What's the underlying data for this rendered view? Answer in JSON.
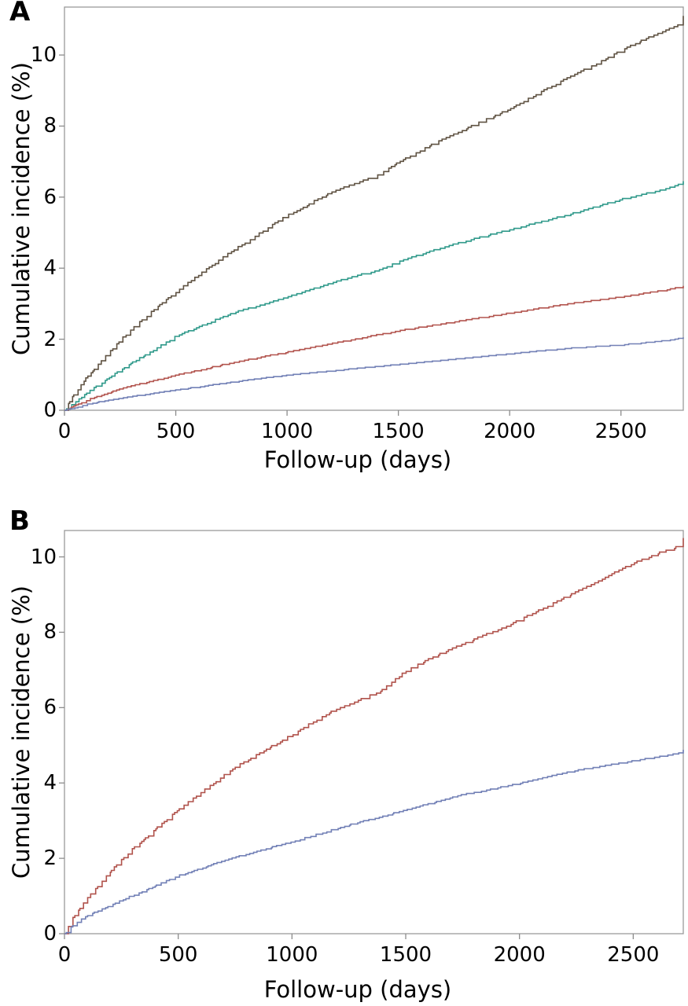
{
  "figure": {
    "background": "#ffffff",
    "frame_color": "#9a9a9a",
    "tick_color": "#8c8c8c",
    "text_color": "#000000"
  },
  "chart_data": [
    {
      "type": "line",
      "style": "kaplan-meier-step",
      "panel_label": "A",
      "title": "",
      "xlabel": "Follow-up (days)",
      "ylabel": "Cumulative incidence (%)",
      "x_ticks": [
        0,
        500,
        1000,
        1500,
        2000,
        2500
      ],
      "y_ticks": [
        0,
        2,
        4,
        6,
        8,
        10
      ],
      "xlim": [
        0,
        2780
      ],
      "ylim": [
        0,
        11.35
      ],
      "grid": false,
      "legend": "none",
      "series": [
        {
          "name": "olive-curve",
          "color": "#5f5242",
          "jump": 0.048,
          "seed": 3,
          "points": [
            [
              0,
              0
            ],
            [
              30,
              0.35
            ],
            [
              100,
              0.95
            ],
            [
              250,
              2.0
            ],
            [
              400,
              2.85
            ],
            [
              500,
              3.35
            ],
            [
              650,
              4.05
            ],
            [
              750,
              4.5
            ],
            [
              900,
              5.1
            ],
            [
              1000,
              5.5
            ],
            [
              1150,
              6.0
            ],
            [
              1250,
              6.3
            ],
            [
              1400,
              6.6
            ],
            [
              1500,
              7.0
            ],
            [
              1650,
              7.5
            ],
            [
              1750,
              7.8
            ],
            [
              2000,
              8.5
            ],
            [
              2250,
              9.35
            ],
            [
              2400,
              9.8
            ],
            [
              2500,
              10.15
            ],
            [
              2650,
              10.6
            ],
            [
              2760,
              10.9
            ],
            [
              2780,
              11.1
            ]
          ]
        },
        {
          "name": "teal-curve",
          "color": "#2f998a",
          "jump": 0.04,
          "seed": 7,
          "points": [
            [
              0,
              0
            ],
            [
              30,
              0.18
            ],
            [
              100,
              0.5
            ],
            [
              250,
              1.15
            ],
            [
              500,
              2.1
            ],
            [
              750,
              2.75
            ],
            [
              1000,
              3.2
            ],
            [
              1250,
              3.7
            ],
            [
              1400,
              3.95
            ],
            [
              1500,
              4.2
            ],
            [
              1750,
              4.7
            ],
            [
              2000,
              5.1
            ],
            [
              2250,
              5.5
            ],
            [
              2500,
              5.95
            ],
            [
              2700,
              6.25
            ],
            [
              2780,
              6.45
            ]
          ]
        },
        {
          "name": "red-curve",
          "color": "#b2544e",
          "jump": 0.03,
          "seed": 13,
          "points": [
            [
              0,
              0
            ],
            [
              100,
              0.3
            ],
            [
              250,
              0.62
            ],
            [
              500,
              1.0
            ],
            [
              750,
              1.35
            ],
            [
              1000,
              1.65
            ],
            [
              1250,
              1.95
            ],
            [
              1500,
              2.25
            ],
            [
              1750,
              2.5
            ],
            [
              2000,
              2.75
            ],
            [
              2250,
              3.0
            ],
            [
              2500,
              3.2
            ],
            [
              2700,
              3.4
            ],
            [
              2780,
              3.5
            ]
          ]
        },
        {
          "name": "blue-curve",
          "color": "#7280b6",
          "jump": 0.022,
          "seed": 21,
          "points": [
            [
              0,
              0
            ],
            [
              100,
              0.18
            ],
            [
              250,
              0.35
            ],
            [
              500,
              0.58
            ],
            [
              750,
              0.8
            ],
            [
              1000,
              1.0
            ],
            [
              1250,
              1.15
            ],
            [
              1500,
              1.3
            ],
            [
              1750,
              1.45
            ],
            [
              2000,
              1.6
            ],
            [
              2250,
              1.75
            ],
            [
              2500,
              1.85
            ],
            [
              2700,
              1.97
            ],
            [
              2780,
              2.05
            ]
          ]
        }
      ]
    },
    {
      "type": "line",
      "style": "kaplan-meier-step",
      "panel_label": "B",
      "title": "",
      "xlabel": "Follow-up (days)",
      "ylabel": "Cumulative incidence (%)",
      "x_ticks": [
        0,
        500,
        1000,
        1500,
        2000,
        2500
      ],
      "y_ticks": [
        0,
        2,
        4,
        6,
        8,
        10
      ],
      "xlim": [
        0,
        2720
      ],
      "ylim": [
        0,
        10.7
      ],
      "grid": false,
      "legend": "none",
      "series": [
        {
          "name": "red-curve",
          "color": "#b0524b",
          "jump": 0.048,
          "seed": 5,
          "points": [
            [
              0,
              0
            ],
            [
              30,
              0.4
            ],
            [
              100,
              0.95
            ],
            [
              250,
              2.0
            ],
            [
              400,
              2.8
            ],
            [
              500,
              3.3
            ],
            [
              650,
              4.0
            ],
            [
              750,
              4.45
            ],
            [
              1000,
              5.3
            ],
            [
              1150,
              5.85
            ],
            [
              1250,
              6.1
            ],
            [
              1400,
              6.5
            ],
            [
              1500,
              7.0
            ],
            [
              1650,
              7.45
            ],
            [
              1750,
              7.7
            ],
            [
              2000,
              8.35
            ],
            [
              2250,
              9.1
            ],
            [
              2500,
              9.85
            ],
            [
              2600,
              10.1
            ],
            [
              2700,
              10.3
            ],
            [
              2720,
              10.5
            ]
          ]
        },
        {
          "name": "blue-curve",
          "color": "#7280b6",
          "jump": 0.03,
          "seed": 9,
          "points": [
            [
              0,
              0
            ],
            [
              30,
              0.2
            ],
            [
              100,
              0.5
            ],
            [
              250,
              0.9
            ],
            [
              500,
              1.55
            ],
            [
              750,
              2.05
            ],
            [
              1000,
              2.45
            ],
            [
              1250,
              2.9
            ],
            [
              1500,
              3.3
            ],
            [
              1750,
              3.7
            ],
            [
              2000,
              4.0
            ],
            [
              2250,
              4.35
            ],
            [
              2500,
              4.6
            ],
            [
              2650,
              4.75
            ],
            [
              2700,
              4.8
            ],
            [
              2720,
              4.88
            ]
          ]
        }
      ]
    }
  ]
}
